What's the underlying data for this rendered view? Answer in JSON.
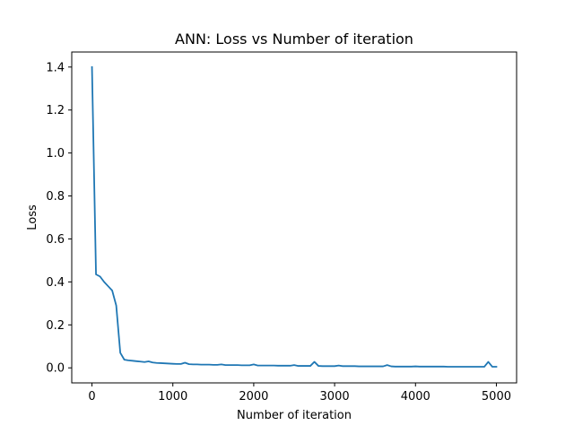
{
  "chart_data": {
    "type": "line",
    "title": "ANN: Loss vs Number of iteration",
    "xlabel": "Number of iteration",
    "ylabel": "Loss",
    "xlim": [
      -250,
      5250
    ],
    "ylim": [
      -0.07,
      1.47
    ],
    "xticks": [
      0,
      1000,
      2000,
      3000,
      4000,
      5000
    ],
    "xtick_labels": [
      "0",
      "1000",
      "2000",
      "3000",
      "4000",
      "5000"
    ],
    "yticks": [
      0.0,
      0.2,
      0.4,
      0.6,
      0.8,
      1.0,
      1.2,
      1.4
    ],
    "ytick_labels": [
      "0.0",
      "0.2",
      "0.4",
      "0.6",
      "0.8",
      "1.0",
      "1.2",
      "1.4"
    ],
    "grid": false,
    "legend": "none",
    "line_color": "#1f77b4",
    "series": [
      {
        "x": [
          0,
          50,
          100,
          150,
          200,
          250,
          300,
          350,
          400,
          450,
          500,
          550,
          600,
          650,
          700,
          750,
          800,
          850,
          900,
          950,
          1000,
          1050,
          1100,
          1150,
          1200,
          1250,
          1300,
          1350,
          1400,
          1450,
          1500,
          1550,
          1600,
          1650,
          1700,
          1750,
          1800,
          1850,
          1900,
          1950,
          2000,
          2050,
          2100,
          2150,
          2200,
          2250,
          2300,
          2350,
          2400,
          2450,
          2500,
          2550,
          2600,
          2650,
          2700,
          2750,
          2800,
          2850,
          2900,
          2950,
          3000,
          3050,
          3100,
          3150,
          3200,
          3250,
          3300,
          3350,
          3400,
          3450,
          3500,
          3550,
          3600,
          3650,
          3700,
          3750,
          3800,
          3850,
          3900,
          3950,
          4000,
          4050,
          4100,
          4150,
          4200,
          4250,
          4300,
          4350,
          4400,
          4450,
          4500,
          4550,
          4600,
          4650,
          4700,
          4750,
          4800,
          4850,
          4900,
          4950,
          5000
        ],
        "values": [
          1.4,
          0.435,
          0.425,
          0.4,
          0.38,
          0.36,
          0.29,
          0.07,
          0.038,
          0.035,
          0.033,
          0.031,
          0.029,
          0.027,
          0.03,
          0.025,
          0.023,
          0.022,
          0.021,
          0.02,
          0.019,
          0.018,
          0.018,
          0.024,
          0.017,
          0.016,
          0.016,
          0.015,
          0.015,
          0.015,
          0.014,
          0.014,
          0.016,
          0.013,
          0.013,
          0.013,
          0.013,
          0.012,
          0.012,
          0.012,
          0.016,
          0.011,
          0.011,
          0.011,
          0.011,
          0.011,
          0.01,
          0.01,
          0.01,
          0.01,
          0.013,
          0.009,
          0.009,
          0.009,
          0.009,
          0.028,
          0.009,
          0.008,
          0.008,
          0.008,
          0.008,
          0.011,
          0.008,
          0.008,
          0.008,
          0.008,
          0.007,
          0.007,
          0.007,
          0.007,
          0.007,
          0.007,
          0.007,
          0.013,
          0.007,
          0.006,
          0.006,
          0.006,
          0.006,
          0.006,
          0.007,
          0.006,
          0.006,
          0.006,
          0.006,
          0.006,
          0.006,
          0.006,
          0.005,
          0.005,
          0.005,
          0.005,
          0.005,
          0.005,
          0.005,
          0.005,
          0.005,
          0.005,
          0.028,
          0.005,
          0.005
        ]
      }
    ]
  }
}
